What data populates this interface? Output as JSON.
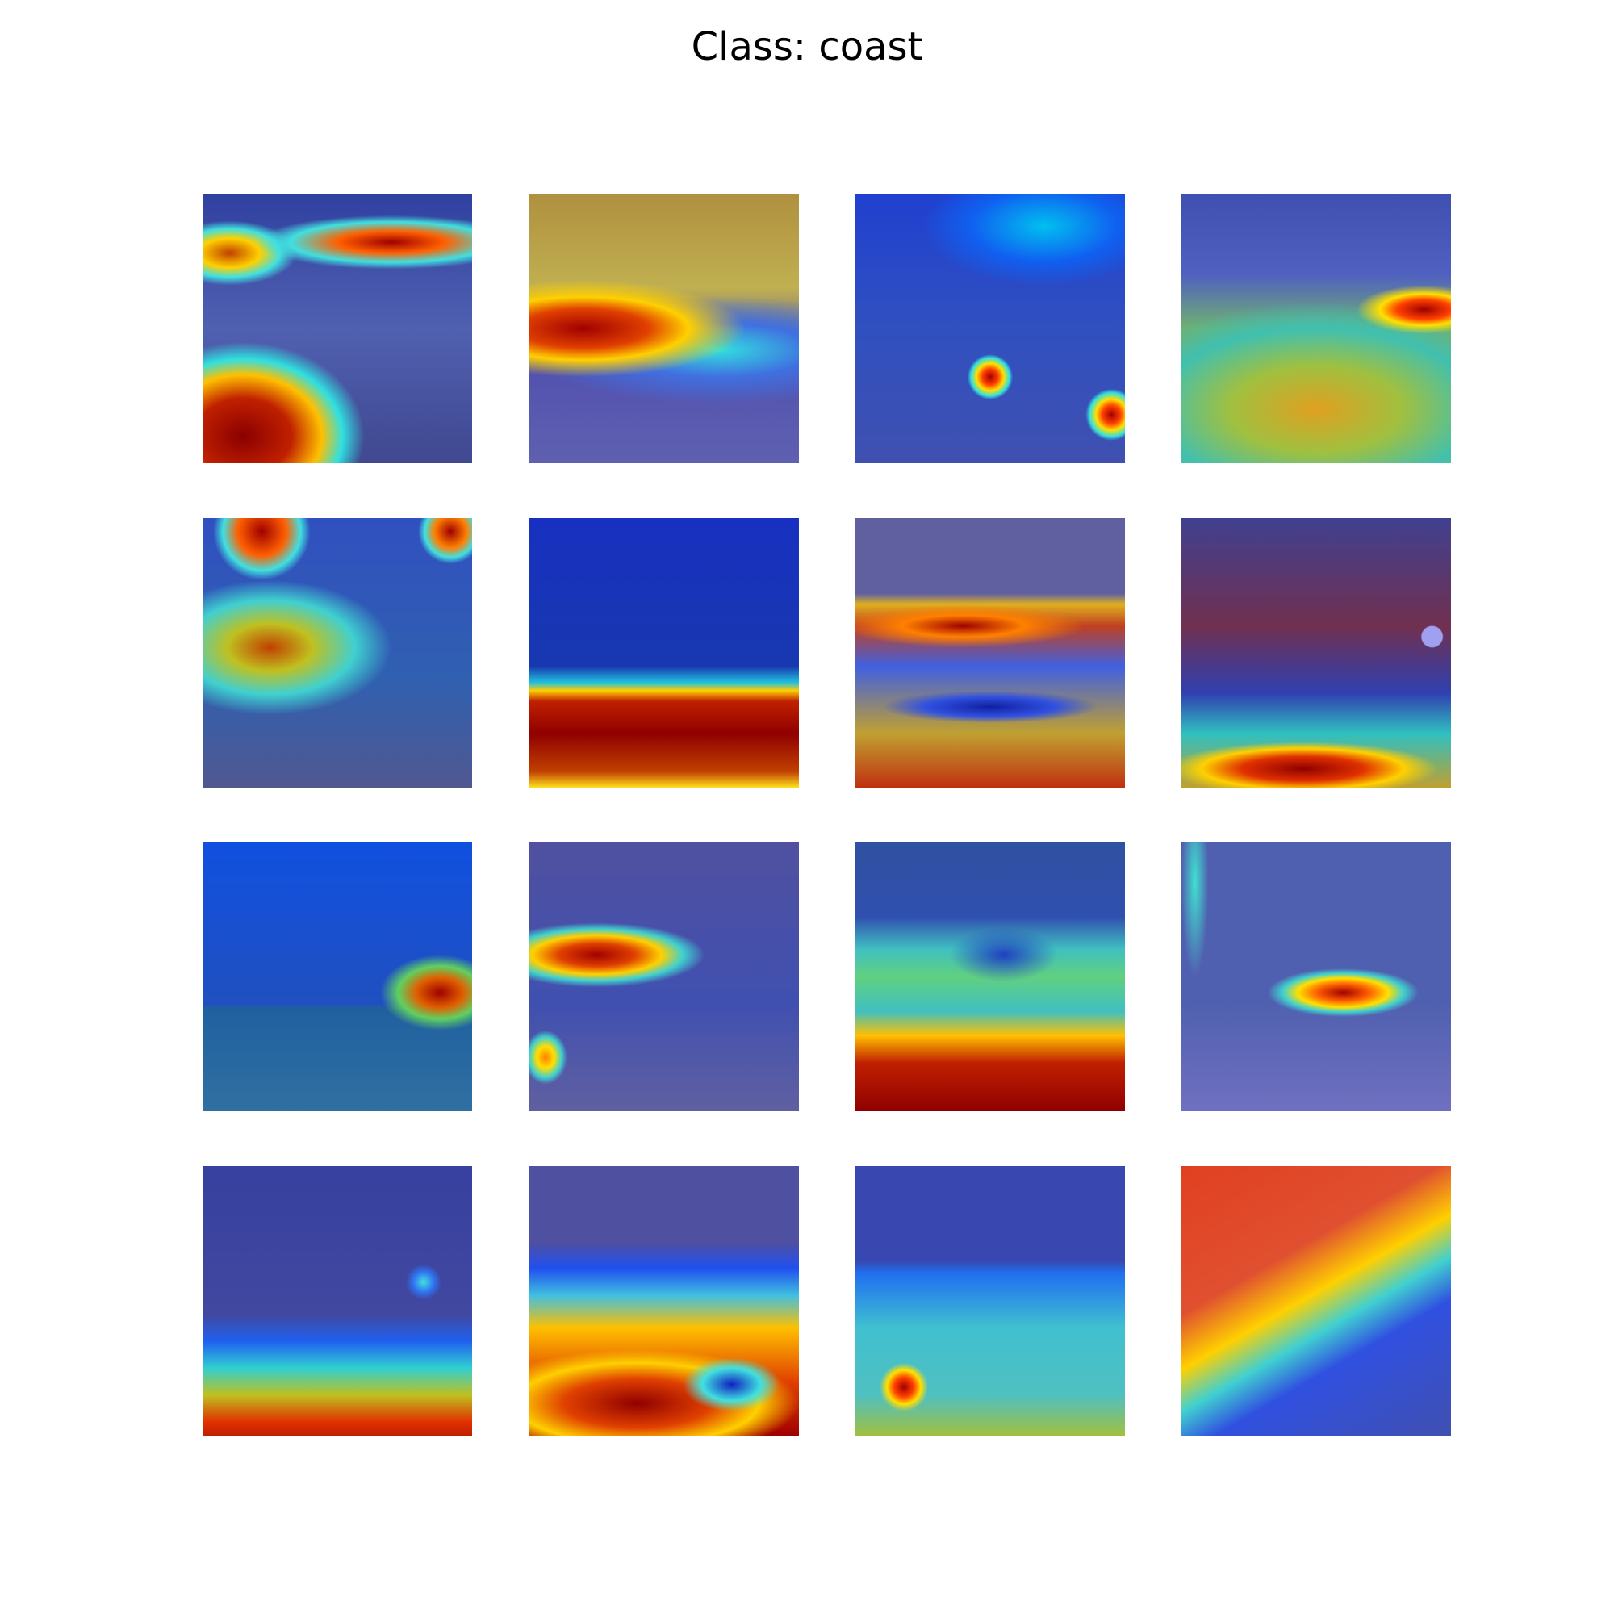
{
  "title": "Class: coast"
}
